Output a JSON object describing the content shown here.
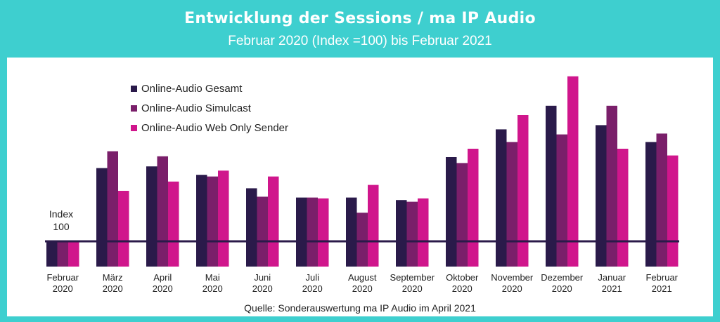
{
  "header": {
    "title": "Entwicklung der Sessions / ma IP Audio",
    "subtitle": "Februar 2020 (Index =100) bis Februar 2021"
  },
  "source": "Quelle: Sonderauswertung ma IP Audio im April 2021",
  "index_label": {
    "line1": "Index",
    "line2": "100"
  },
  "colors": {
    "frame": "#3ECFCF",
    "gesamt": "#2A1A4A",
    "simulcast": "#7A1F6A",
    "webonly": "#D0168C",
    "index_line": "#2A1A4A"
  },
  "chart_data": {
    "type": "bar",
    "categories": [
      [
        "Februar",
        "2020"
      ],
      [
        "März",
        "2020"
      ],
      [
        "April",
        "2020"
      ],
      [
        "Mai",
        "2020"
      ],
      [
        "Juni",
        "2020"
      ],
      [
        "Juli",
        "2020"
      ],
      [
        "August",
        "2020"
      ],
      [
        "September",
        "2020"
      ],
      [
        "Oktober",
        "2020"
      ],
      [
        "November",
        "2020"
      ],
      [
        "Dezember",
        "2020"
      ],
      [
        "Januar",
        "2021"
      ],
      [
        "Februar",
        "2021"
      ]
    ],
    "series": [
      {
        "name": "Online-Audio Gesamt",
        "color": "#2A1A4A",
        "values": [
          100,
          187,
          189,
          179,
          163,
          152,
          152,
          149,
          200,
          233,
          261,
          238,
          218
        ]
      },
      {
        "name": "Online-Audio Simulcast",
        "color": "#7A1F6A",
        "values": [
          100,
          207,
          201,
          177,
          153,
          152,
          134,
          147,
          193,
          218,
          227,
          261,
          228
        ]
      },
      {
        "name": "Online-Audio Web Only Sender",
        "color": "#D0168C",
        "values": [
          100,
          160,
          171,
          184,
          177,
          151,
          167,
          151,
          210,
          250,
          296,
          210,
          202
        ]
      }
    ],
    "reference_line": {
      "value": 100,
      "label": "Index 100"
    },
    "ylim": [
      70,
      300
    ],
    "grid": false,
    "legend": "top-left"
  }
}
